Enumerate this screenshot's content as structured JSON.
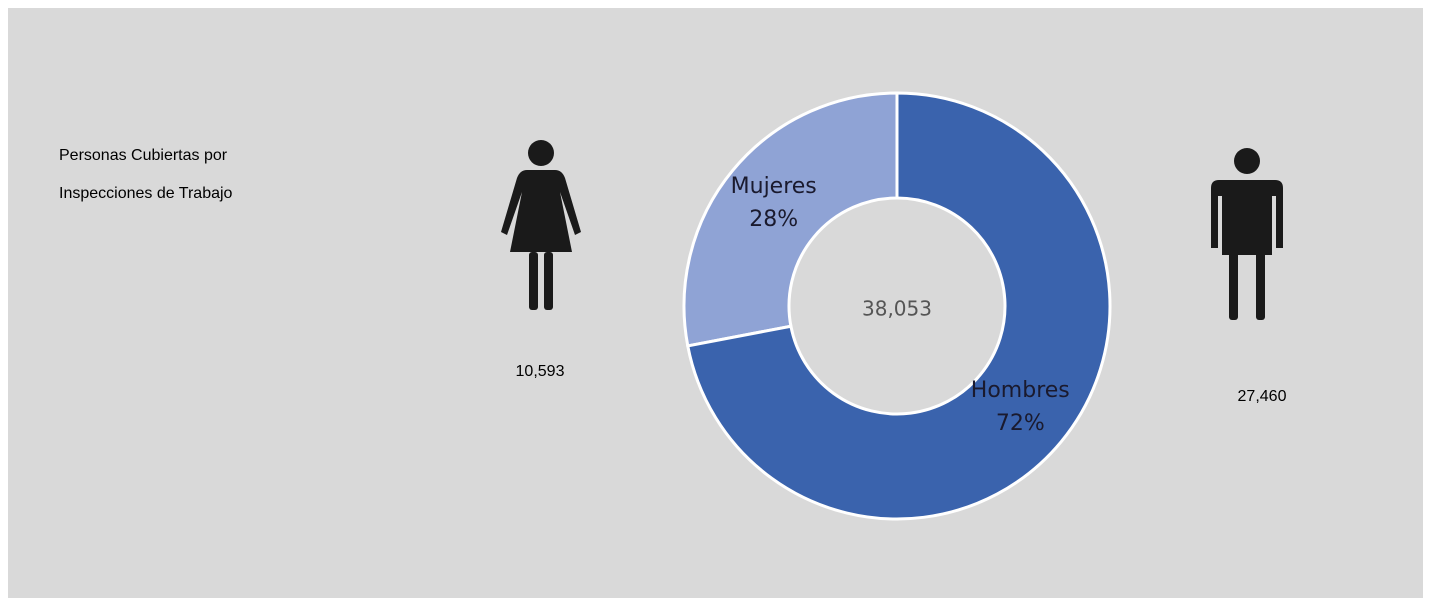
{
  "chart_data": {
    "type": "donut",
    "title": "Personas Cubiertas por Inspecciones de Trabajo",
    "categories": [
      "Mujeres",
      "Hombres"
    ],
    "values": [
      28,
      72
    ],
    "value_labels": [
      "28%",
      "72%"
    ],
    "colors": [
      "#8fa3d5",
      "#3a63ad"
    ],
    "counts": [
      "10,593",
      "27,460"
    ],
    "total": "38,053"
  }
}
